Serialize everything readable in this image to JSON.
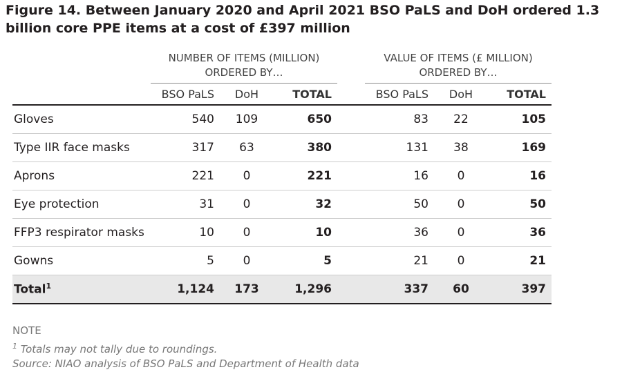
{
  "header": {
    "title": "Figure 14. Between January 2020 and April 2021 BSO PaLS and DoH ordered 1.3 billion core PPE items at a cost of £397 million"
  },
  "table": {
    "group_headers": [
      "NUMBER OF ITEMS (MILLION) ORDERED BY…",
      "VALUE OF ITEMS (£ MILLION) ORDERED BY…"
    ],
    "columns": [
      "BSO PaLS",
      "DoH",
      "TOTAL",
      "BSO PaLS",
      "DoH",
      "TOTAL"
    ],
    "rows": [
      [
        "Gloves",
        "540",
        "109",
        "650",
        "83",
        "22",
        "105"
      ],
      [
        "Type IIR face masks",
        "317",
        "63",
        "380",
        "131",
        "38",
        "169"
      ],
      [
        "Aprons",
        "221",
        "0",
        "221",
        "16",
        "0",
        "16"
      ],
      [
        "Eye protection",
        "31",
        "0",
        "32",
        "50",
        "0",
        "50"
      ],
      [
        "FFP3 respirator masks",
        "10",
        "0",
        "10",
        "36",
        "0",
        "36"
      ],
      [
        "Gowns",
        "5",
        "0",
        "5",
        "21",
        "0",
        "21"
      ]
    ],
    "total_row": {
      "label": "Total",
      "footnote_marker": "1",
      "values": [
        "1,124",
        "173",
        "1,296",
        "337",
        "60",
        "397"
      ]
    }
  },
  "notes": {
    "heading": "NOTE",
    "footnote_marker": "1",
    "footnote": "Totals may not tally due to roundings.",
    "source": "Source: NIAO analysis of BSO PaLS and Department of Health data"
  }
}
